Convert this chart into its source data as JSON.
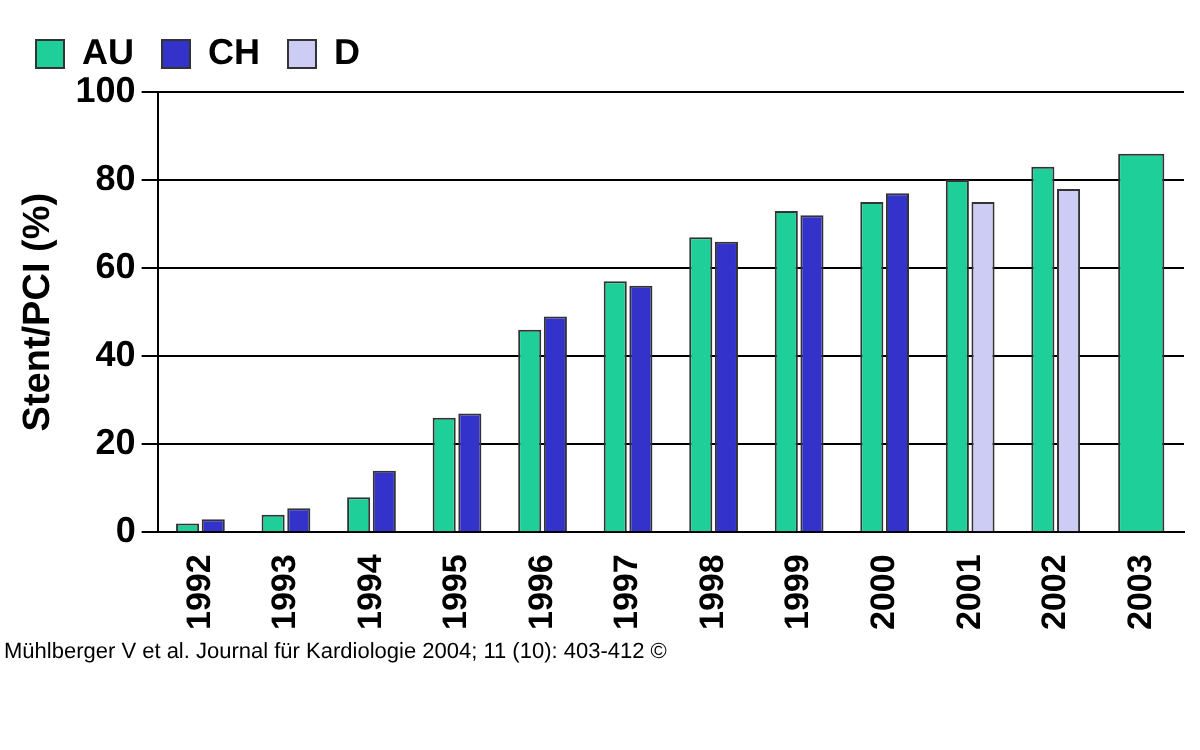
{
  "chart_data": {
    "type": "bar",
    "ylabel": "Stent/PCI (%)",
    "categories": [
      "1992",
      "1993",
      "1994",
      "1995",
      "1996",
      "1997",
      "1998",
      "1999",
      "2000",
      "2001",
      "2002",
      "2003"
    ],
    "series": [
      {
        "name": "AU",
        "color": "#1fcf9a",
        "values": [
          2,
          4,
          8,
          26,
          46,
          57,
          67,
          73,
          75,
          80,
          83,
          86
        ]
      },
      {
        "name": "CH",
        "color": "#3333cc",
        "values": [
          3,
          5.5,
          14,
          27,
          49,
          56,
          66,
          72,
          77,
          null,
          null,
          null
        ]
      },
      {
        "name": "D",
        "color": "#ccccf5",
        "values": [
          null,
          null,
          null,
          null,
          null,
          null,
          null,
          null,
          null,
          75,
          78,
          null
        ]
      }
    ],
    "ylim": [
      0,
      100
    ],
    "yticks": [
      0,
      20,
      40,
      60,
      80,
      100
    ],
    "grid": "y",
    "legend": "top left",
    "annotations": [
      "Mühlberger V et al. Journal für Kardiologie 2004; 11 (10): 403-412 ©"
    ]
  }
}
